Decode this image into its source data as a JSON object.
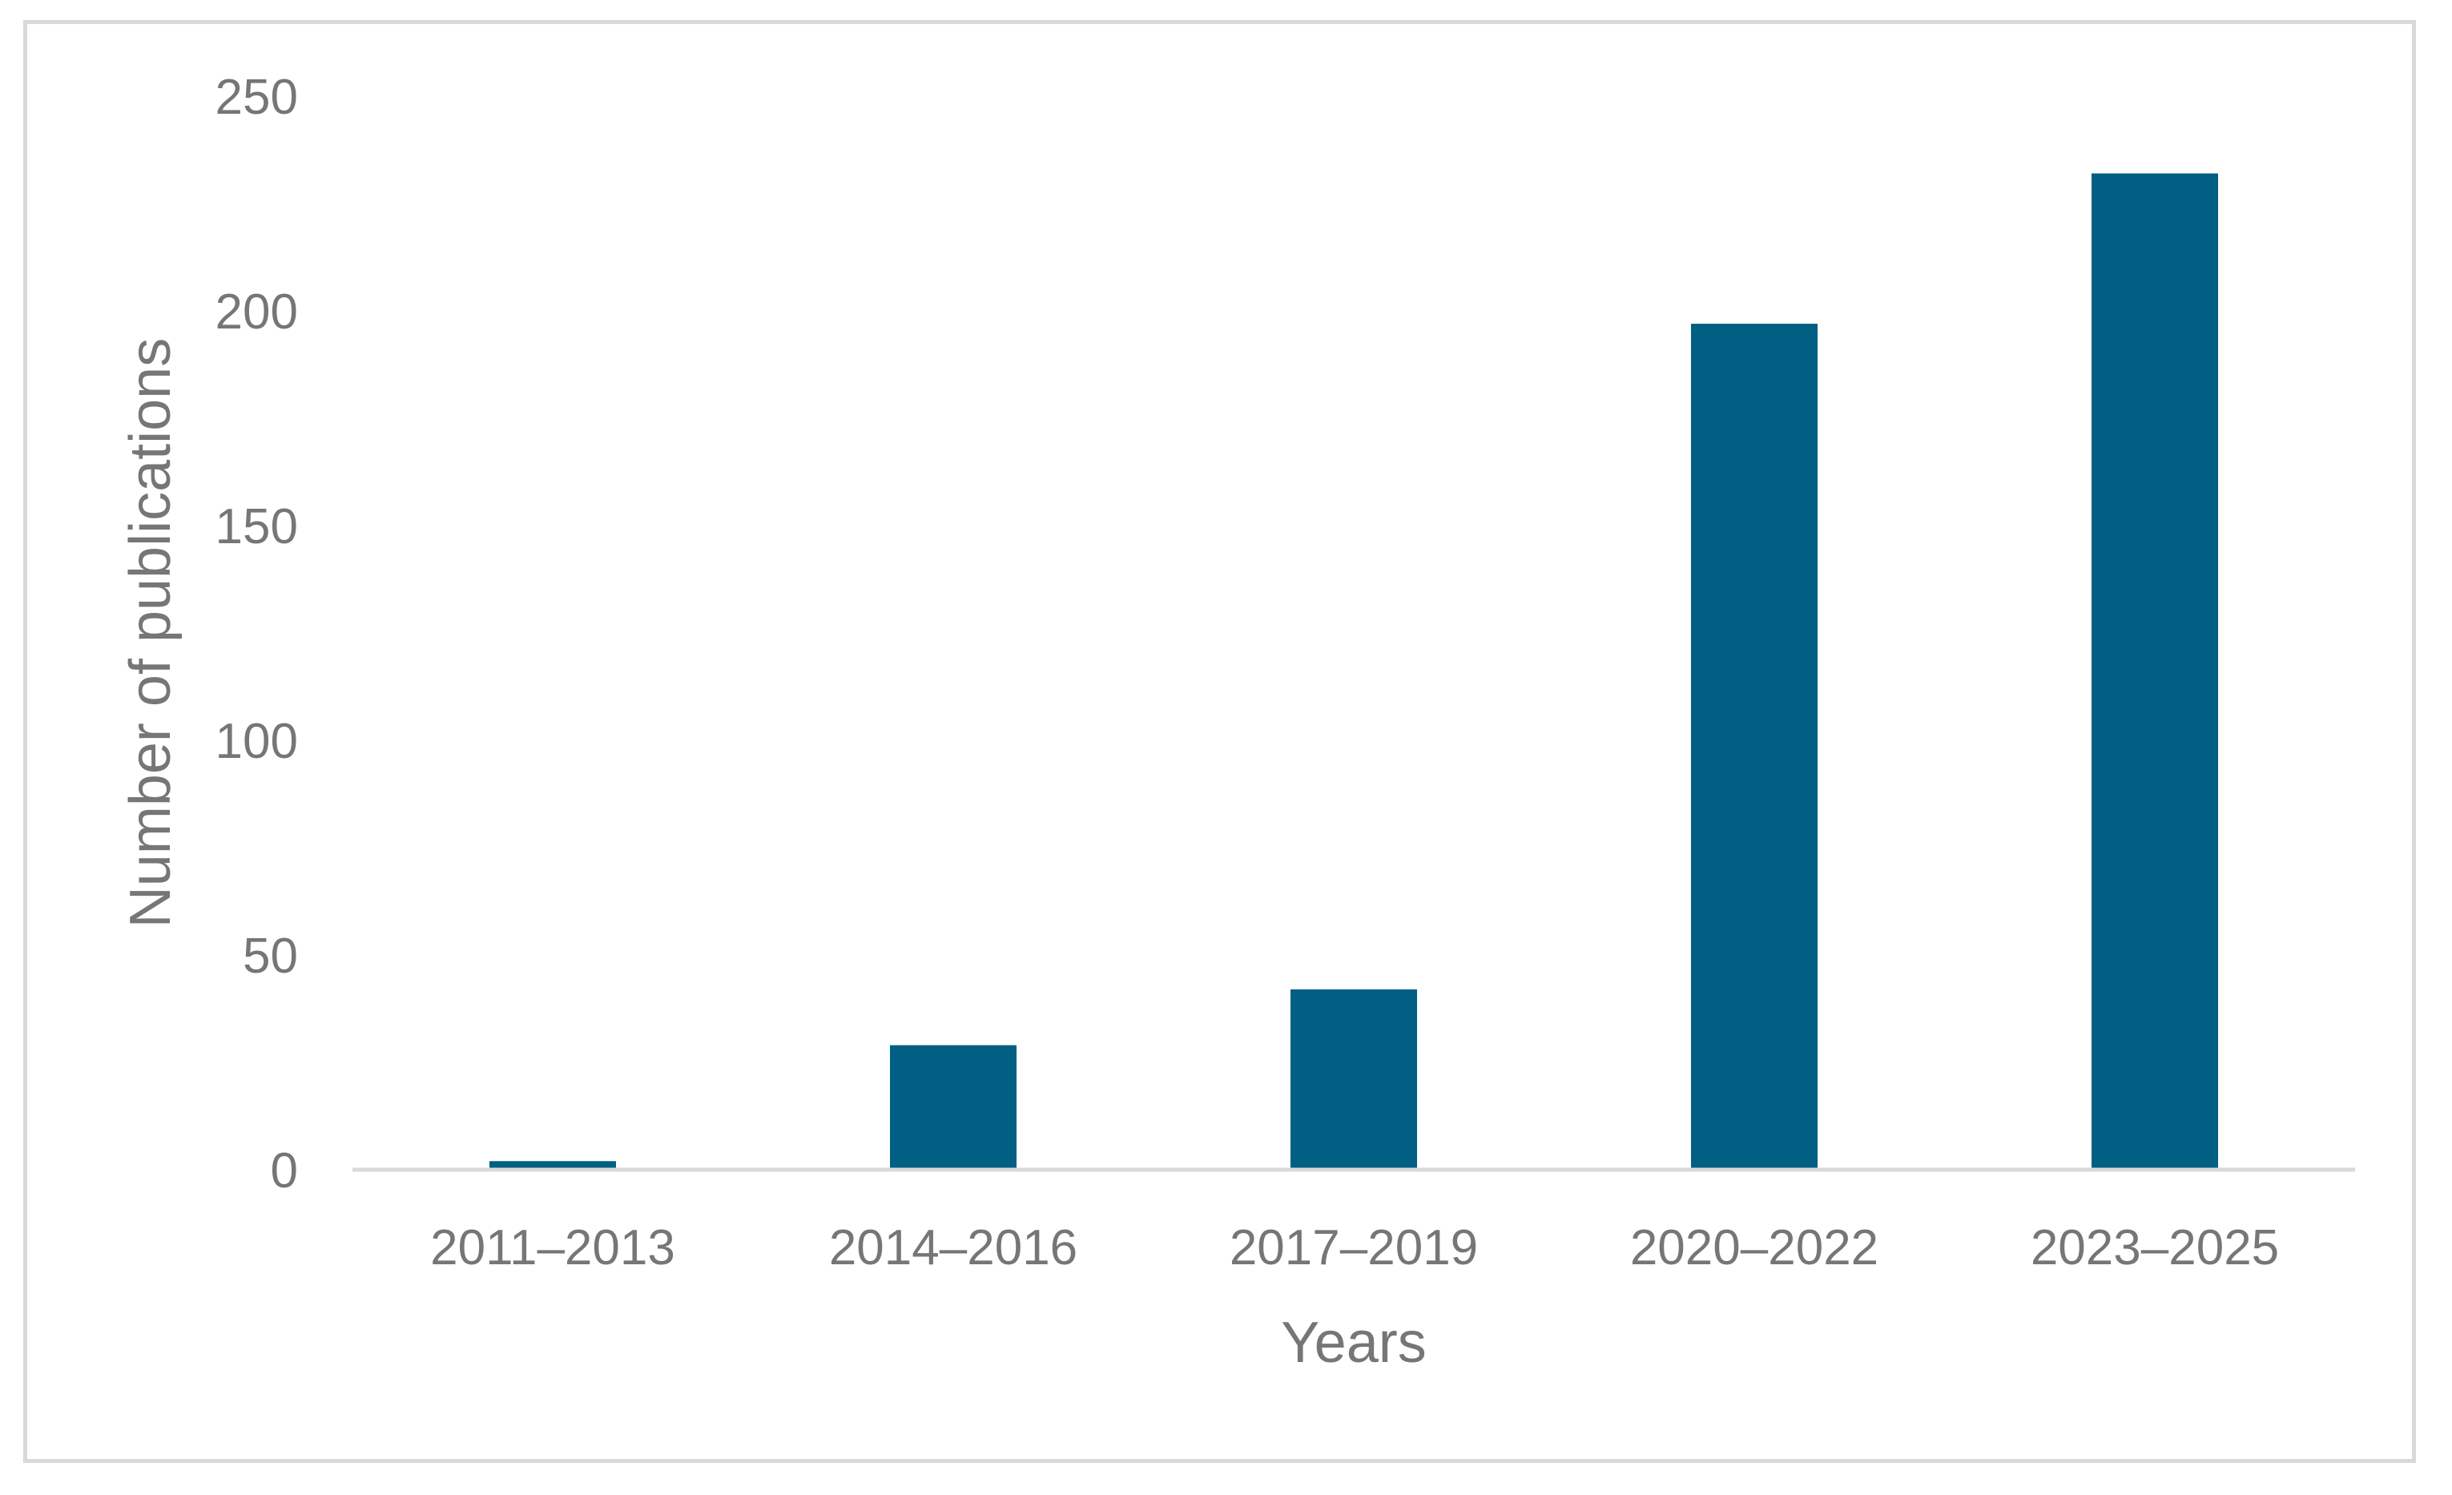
{
  "chart_data": {
    "type": "bar",
    "title": "",
    "xlabel": "Years",
    "ylabel": "Number of publications",
    "categories": [
      "2011–2013",
      "2014–2016",
      "2017–2019",
      "2020–2022",
      "2023–2025"
    ],
    "series": [
      {
        "values": [
          2,
          29,
          42,
          197,
          232
        ]
      }
    ],
    "ylim": [
      0,
      250
    ],
    "yticks": [
      0,
      50,
      100,
      150,
      200,
      250
    ],
    "grid": false,
    "legend": "none",
    "colors": {
      "bar": "#005f83",
      "axis_line": "#d9d9d9",
      "text": "#767676",
      "frame": "#d9d9d9"
    }
  }
}
